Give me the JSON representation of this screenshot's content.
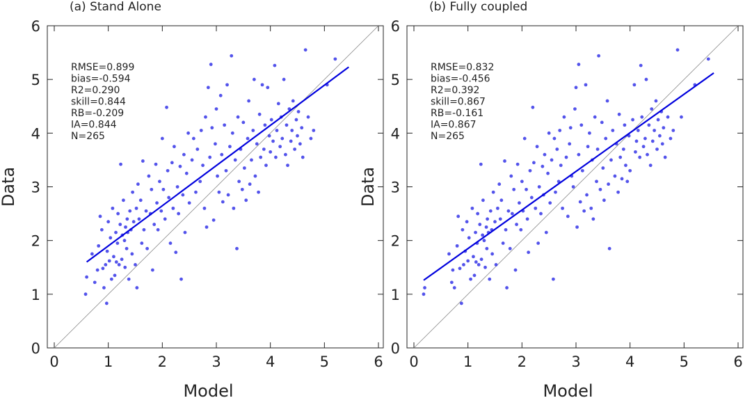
{
  "chart_data": [
    {
      "type": "scatter",
      "title": "(a) Stand Alone",
      "xlabel": "Model",
      "ylabel": "Data",
      "xlim": [
        0,
        6
      ],
      "ylim": [
        0,
        6
      ],
      "xticks": [
        "0",
        "1",
        "2",
        "3",
        "4",
        "5",
        "6"
      ],
      "yticks": [
        "0",
        "1",
        "2",
        "3",
        "4",
        "5",
        "6"
      ],
      "stats": [
        "RMSE=0.899",
        "bias=-0.594",
        "R2=0.290",
        "skill=0.844",
        "RB=-0.209",
        "IA=0.844",
        "N=265"
      ],
      "fit_line": {
        "x": [
          0.6,
          5.45
        ],
        "y": [
          1.6,
          5.23
        ]
      },
      "one_to_one": {
        "x": [
          0,
          6
        ],
        "y": [
          0,
          6
        ]
      },
      "points": [
        [
          0.58,
          1.0
        ],
        [
          0.6,
          1.32
        ],
        [
          0.7,
          1.75
        ],
        [
          0.75,
          1.22
        ],
        [
          0.8,
          1.45
        ],
        [
          0.82,
          1.9
        ],
        [
          0.85,
          2.45
        ],
        [
          0.88,
          2.2
        ],
        [
          0.9,
          1.48
        ],
        [
          0.92,
          1.12
        ],
        [
          0.95,
          1.55
        ],
        [
          0.97,
          0.83
        ],
        [
          0.98,
          1.8
        ],
        [
          1.0,
          2.35
        ],
        [
          1.02,
          1.62
        ],
        [
          1.04,
          2.05
        ],
        [
          1.06,
          1.28
        ],
        [
          1.08,
          2.6
        ],
        [
          1.1,
          1.7
        ],
        [
          1.12,
          1.35
        ],
        [
          1.14,
          2.15
        ],
        [
          1.15,
          1.6
        ],
        [
          1.17,
          1.95
        ],
        [
          1.18,
          2.5
        ],
        [
          1.2,
          1.55
        ],
        [
          1.22,
          2.3
        ],
        [
          1.23,
          3.42
        ],
        [
          1.25,
          1.65
        ],
        [
          1.26,
          2.1
        ],
        [
          1.28,
          2.75
        ],
        [
          1.3,
          2.0
        ],
        [
          1.31,
          1.5
        ],
        [
          1.32,
          2.25
        ],
        [
          1.34,
          1.85
        ],
        [
          1.35,
          2.4
        ],
        [
          1.36,
          2.15
        ],
        [
          1.38,
          1.28
        ],
        [
          1.4,
          2.55
        ],
        [
          1.42,
          2.2
        ],
        [
          1.44,
          1.75
        ],
        [
          1.45,
          2.9
        ],
        [
          1.47,
          2.35
        ],
        [
          1.5,
          1.55
        ],
        [
          1.52,
          2.6
        ],
        [
          1.53,
          1.12
        ],
        [
          1.55,
          3.05
        ],
        [
          1.57,
          2.4
        ],
        [
          1.6,
          2.75
        ],
        [
          1.62,
          1.95
        ],
        [
          1.64,
          3.48
        ],
        [
          1.66,
          2.2
        ],
        [
          1.7,
          2.55
        ],
        [
          1.72,
          1.85
        ],
        [
          1.75,
          3.2
        ],
        [
          1.78,
          2.5
        ],
        [
          1.8,
          2.95
        ],
        [
          1.82,
          1.45
        ],
        [
          1.85,
          2.3
        ],
        [
          1.88,
          3.42
        ],
        [
          1.9,
          2.7
        ],
        [
          1.92,
          2.2
        ],
        [
          1.95,
          3.1
        ],
        [
          1.98,
          2.55
        ],
        [
          2.0,
          3.9
        ],
        [
          2.02,
          2.95
        ],
        [
          2.05,
          2.4
        ],
        [
          2.08,
          4.48
        ],
        [
          2.1,
          3.3
        ],
        [
          2.12,
          2.8
        ],
        [
          2.15,
          1.95
        ],
        [
          2.18,
          3.45
        ],
        [
          2.2,
          2.6
        ],
        [
          2.22,
          3.75
        ],
        [
          2.25,
          1.78
        ],
        [
          2.28,
          3.0
        ],
        [
          2.3,
          2.5
        ],
        [
          2.33,
          3.38
        ],
        [
          2.35,
          1.28
        ],
        [
          2.38,
          2.85
        ],
        [
          2.4,
          3.6
        ],
        [
          2.42,
          2.15
        ],
        [
          2.45,
          3.25
        ],
        [
          2.48,
          4.0
        ],
        [
          2.5,
          2.7
        ],
        [
          2.55,
          3.5
        ],
        [
          2.58,
          3.9
        ],
        [
          2.62,
          2.9
        ],
        [
          2.65,
          3.7
        ],
        [
          2.7,
          3.1
        ],
        [
          2.72,
          4.05
        ],
        [
          2.75,
          3.4
        ],
        [
          2.78,
          2.6
        ],
        [
          2.8,
          4.3
        ],
        [
          2.82,
          2.25
        ],
        [
          2.85,
          4.85
        ],
        [
          2.88,
          3.55
        ],
        [
          2.9,
          5.28
        ],
        [
          2.92,
          4.1
        ],
        [
          2.95,
          2.38
        ],
        [
          2.98,
          3.8
        ],
        [
          3.0,
          4.45
        ],
        [
          3.02,
          3.2
        ],
        [
          3.05,
          2.9
        ],
        [
          3.08,
          4.7
        ],
        [
          3.1,
          3.6
        ],
        [
          3.12,
          2.72
        ],
        [
          3.15,
          4.15
        ],
        [
          3.18,
          3.3
        ],
        [
          3.2,
          4.9
        ],
        [
          3.22,
          2.85
        ],
        [
          3.25,
          3.75
        ],
        [
          3.28,
          5.44
        ],
        [
          3.3,
          4.0
        ],
        [
          3.32,
          2.6
        ],
        [
          3.35,
          3.5
        ],
        [
          3.38,
          1.85
        ],
        [
          3.4,
          4.3
        ],
        [
          3.42,
          3.1
        ],
        [
          3.45,
          3.7
        ],
        [
          3.48,
          2.95
        ],
        [
          3.5,
          4.2
        ],
        [
          3.52,
          3.35
        ],
        [
          3.55,
          2.75
        ],
        [
          3.58,
          3.9
        ],
        [
          3.6,
          4.6
        ],
        [
          3.62,
          3.05
        ],
        [
          3.65,
          3.5
        ],
        [
          3.68,
          4.05
        ],
        [
          3.7,
          5.0
        ],
        [
          3.72,
          3.2
        ],
        [
          3.75,
          3.8
        ],
        [
          3.78,
          2.9
        ],
        [
          3.8,
          4.35
        ],
        [
          3.82,
          3.55
        ],
        [
          3.85,
          4.9
        ],
        [
          3.88,
          3.7
        ],
        [
          3.9,
          4.15
        ],
        [
          3.92,
          3.4
        ],
        [
          3.95,
          4.85
        ],
        [
          3.98,
          3.95
        ],
        [
          4.0,
          3.65
        ],
        [
          4.02,
          4.25
        ],
        [
          4.05,
          3.85
        ],
        [
          4.08,
          5.26
        ],
        [
          4.1,
          3.55
        ],
        [
          4.12,
          4.05
        ],
        [
          4.15,
          4.55
        ],
        [
          4.18,
          3.75
        ],
        [
          4.2,
          4.3
        ],
        [
          4.22,
          3.9
        ],
        [
          4.25,
          5.0
        ],
        [
          4.28,
          3.6
        ],
        [
          4.3,
          4.15
        ],
        [
          4.32,
          3.4
        ],
        [
          4.35,
          4.45
        ],
        [
          4.38,
          3.85
        ],
        [
          4.4,
          4.05
        ],
        [
          4.42,
          4.6
        ],
        [
          4.45,
          3.7
        ],
        [
          4.48,
          4.25
        ],
        [
          4.5,
          3.95
        ],
        [
          4.52,
          4.4
        ],
        [
          4.55,
          3.8
        ],
        [
          4.58,
          4.1
        ],
        [
          4.6,
          3.55
        ],
        [
          4.65,
          5.55
        ],
        [
          4.7,
          4.3
        ],
        [
          4.75,
          3.9
        ],
        [
          4.8,
          4.05
        ],
        [
          5.05,
          4.9
        ],
        [
          5.2,
          5.38
        ]
      ]
    },
    {
      "type": "scatter",
      "title": "(b) Fully coupled",
      "xlabel": "Model",
      "ylabel": "Data",
      "xlim": [
        0,
        6
      ],
      "ylim": [
        0,
        6
      ],
      "xticks": [
        "0",
        "1",
        "2",
        "3",
        "4",
        "5",
        "6"
      ],
      "yticks": [
        "0",
        "1",
        "2",
        "3",
        "4",
        "5",
        "6"
      ],
      "stats": [
        "RMSE=0.832",
        "bias=-0.456",
        "R2=0.392",
        "skill=0.867",
        "RB=-0.161",
        "IA=0.867",
        "N=265"
      ],
      "fit_line": {
        "x": [
          0.18,
          5.55
        ],
        "y": [
          1.26,
          5.12
        ]
      },
      "one_to_one": {
        "x": [
          0,
          6
        ],
        "y": [
          0,
          6
        ]
      },
      "points": [
        [
          0.18,
          1.0
        ],
        [
          0.2,
          1.12
        ],
        [
          0.65,
          1.75
        ],
        [
          0.7,
          1.22
        ],
        [
          0.72,
          1.45
        ],
        [
          0.75,
          1.12
        ],
        [
          0.8,
          1.9
        ],
        [
          0.82,
          2.45
        ],
        [
          0.85,
          1.48
        ],
        [
          0.88,
          0.83
        ],
        [
          0.9,
          2.2
        ],
        [
          0.92,
          1.55
        ],
        [
          0.95,
          1.8
        ],
        [
          0.98,
          2.35
        ],
        [
          1.0,
          1.62
        ],
        [
          1.02,
          2.05
        ],
        [
          1.05,
          1.28
        ],
        [
          1.08,
          2.6
        ],
        [
          1.1,
          1.7
        ],
        [
          1.12,
          1.35
        ],
        [
          1.14,
          2.15
        ],
        [
          1.15,
          1.6
        ],
        [
          1.17,
          1.95
        ],
        [
          1.18,
          2.5
        ],
        [
          1.2,
          1.55
        ],
        [
          1.22,
          2.3
        ],
        [
          1.24,
          3.42
        ],
        [
          1.25,
          1.65
        ],
        [
          1.27,
          2.1
        ],
        [
          1.28,
          2.75
        ],
        [
          1.3,
          2.0
        ],
        [
          1.32,
          1.5
        ],
        [
          1.34,
          2.25
        ],
        [
          1.35,
          1.85
        ],
        [
          1.36,
          2.4
        ],
        [
          1.38,
          2.15
        ],
        [
          1.4,
          1.28
        ],
        [
          1.42,
          2.55
        ],
        [
          1.44,
          2.2
        ],
        [
          1.45,
          1.75
        ],
        [
          1.47,
          2.9
        ],
        [
          1.5,
          2.35
        ],
        [
          1.52,
          1.55
        ],
        [
          1.55,
          2.6
        ],
        [
          1.58,
          3.05
        ],
        [
          1.6,
          2.4
        ],
        [
          1.62,
          2.75
        ],
        [
          1.65,
          1.95
        ],
        [
          1.68,
          3.48
        ],
        [
          1.7,
          2.2
        ],
        [
          1.72,
          1.12
        ],
        [
          1.75,
          2.55
        ],
        [
          1.78,
          1.85
        ],
        [
          1.8,
          3.2
        ],
        [
          1.82,
          2.5
        ],
        [
          1.85,
          2.95
        ],
        [
          1.88,
          1.45
        ],
        [
          1.9,
          2.3
        ],
        [
          1.92,
          3.42
        ],
        [
          1.95,
          2.7
        ],
        [
          1.98,
          2.2
        ],
        [
          2.0,
          3.1
        ],
        [
          2.02,
          2.55
        ],
        [
          2.05,
          3.9
        ],
        [
          2.08,
          2.95
        ],
        [
          2.1,
          2.4
        ],
        [
          2.12,
          1.78
        ],
        [
          2.15,
          3.3
        ],
        [
          2.18,
          2.8
        ],
        [
          2.2,
          4.48
        ],
        [
          2.22,
          3.45
        ],
        [
          2.25,
          2.6
        ],
        [
          2.28,
          3.75
        ],
        [
          2.3,
          1.95
        ],
        [
          2.32,
          3.0
        ],
        [
          2.35,
          2.5
        ],
        [
          2.38,
          3.38
        ],
        [
          2.4,
          2.85
        ],
        [
          2.42,
          3.6
        ],
        [
          2.45,
          2.15
        ],
        [
          2.48,
          3.25
        ],
        [
          2.5,
          4.0
        ],
        [
          2.52,
          2.7
        ],
        [
          2.55,
          3.5
        ],
        [
          2.58,
          1.28
        ],
        [
          2.6,
          3.9
        ],
        [
          2.62,
          2.9
        ],
        [
          2.65,
          3.7
        ],
        [
          2.68,
          3.1
        ],
        [
          2.7,
          4.05
        ],
        [
          2.72,
          3.4
        ],
        [
          2.75,
          2.6
        ],
        [
          2.78,
          4.3
        ],
        [
          2.82,
          3.55
        ],
        [
          2.85,
          2.45
        ],
        [
          2.88,
          3.8
        ],
        [
          2.9,
          4.1
        ],
        [
          2.92,
          3.2
        ],
        [
          2.95,
          3.0
        ],
        [
          2.98,
          4.45
        ],
        [
          3.0,
          4.85
        ],
        [
          3.02,
          2.25
        ],
        [
          3.05,
          3.6
        ],
        [
          3.05,
          5.28
        ],
        [
          3.08,
          2.72
        ],
        [
          3.1,
          4.15
        ],
        [
          3.12,
          3.3
        ],
        [
          3.15,
          2.55
        ],
        [
          3.18,
          4.9
        ],
        [
          3.2,
          2.85
        ],
        [
          3.22,
          3.75
        ],
        [
          3.25,
          4.0
        ],
        [
          3.28,
          2.6
        ],
        [
          3.3,
          3.5
        ],
        [
          3.32,
          2.4
        ],
        [
          3.35,
          4.3
        ],
        [
          3.38,
          3.1
        ],
        [
          3.4,
          3.7
        ],
        [
          3.42,
          5.44
        ],
        [
          3.45,
          2.95
        ],
        [
          3.48,
          4.2
        ],
        [
          3.5,
          3.35
        ],
        [
          3.52,
          2.75
        ],
        [
          3.55,
          3.9
        ],
        [
          3.58,
          4.6
        ],
        [
          3.6,
          3.05
        ],
        [
          3.62,
          1.85
        ],
        [
          3.65,
          3.5
        ],
        [
          3.68,
          4.05
        ],
        [
          3.72,
          3.2
        ],
        [
          3.75,
          3.8
        ],
        [
          3.78,
          2.9
        ],
        [
          3.8,
          4.35
        ],
        [
          3.82,
          3.55
        ],
        [
          3.85,
          3.15
        ],
        [
          3.88,
          3.7
        ],
        [
          3.9,
          4.15
        ],
        [
          3.92,
          3.4
        ],
        [
          3.95,
          3.1
        ],
        [
          3.98,
          3.95
        ],
        [
          4.0,
          3.3
        ],
        [
          4.05,
          4.25
        ],
        [
          4.08,
          4.9
        ],
        [
          4.1,
          3.65
        ],
        [
          4.12,
          3.85
        ],
        [
          4.15,
          4.05
        ],
        [
          4.18,
          3.55
        ],
        [
          4.2,
          5.26
        ],
        [
          4.22,
          4.3
        ],
        [
          4.25,
          3.75
        ],
        [
          4.28,
          3.9
        ],
        [
          4.3,
          5.0
        ],
        [
          4.32,
          3.6
        ],
        [
          4.35,
          4.15
        ],
        [
          4.38,
          3.4
        ],
        [
          4.4,
          4.45
        ],
        [
          4.42,
          3.85
        ],
        [
          4.45,
          4.05
        ],
        [
          4.48,
          4.6
        ],
        [
          4.5,
          3.7
        ],
        [
          4.52,
          4.25
        ],
        [
          4.55,
          3.95
        ],
        [
          4.58,
          4.4
        ],
        [
          4.6,
          3.8
        ],
        [
          4.62,
          4.1
        ],
        [
          4.65,
          3.55
        ],
        [
          4.7,
          4.3
        ],
        [
          4.75,
          3.9
        ],
        [
          4.8,
          4.05
        ],
        [
          4.88,
          5.55
        ],
        [
          4.95,
          4.3
        ],
        [
          5.2,
          4.9
        ],
        [
          5.45,
          5.38
        ]
      ]
    }
  ]
}
